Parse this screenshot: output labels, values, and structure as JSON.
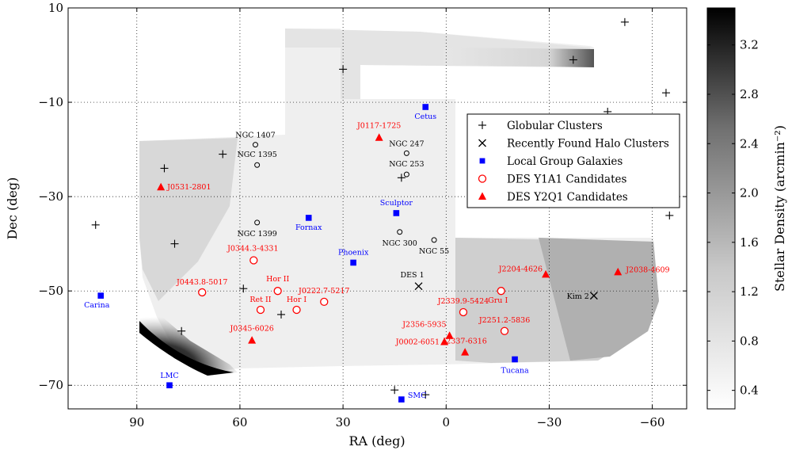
{
  "chart_data": {
    "type": "scatter",
    "title": "",
    "xlabel": "RA (deg)",
    "ylabel": "Dec (deg)",
    "xlim": [
      110,
      -70
    ],
    "ylim": [
      -75,
      10
    ],
    "x_ticks": [
      90,
      60,
      30,
      0,
      -30,
      -60
    ],
    "x_tick_labels": [
      "90",
      "60",
      "30",
      "0",
      "−30",
      "−60"
    ],
    "y_ticks": [
      10,
      -10,
      -30,
      -50,
      -70
    ],
    "y_tick_labels": [
      "10",
      "−10",
      "−30",
      "−50",
      "−70"
    ],
    "grid": true,
    "legend_position": "upper-right",
    "background": "stellar density map, greyscale",
    "colorbar": {
      "label": "Stellar Density (arcmin⁻²)",
      "range": [
        0.25,
        3.5
      ],
      "ticks": [
        0.4,
        0.8,
        1.2,
        1.6,
        2.0,
        2.4,
        2.8,
        3.2
      ],
      "tick_labels": [
        "0.4",
        "0.8",
        "1.2",
        "1.6",
        "2.0",
        "2.4",
        "2.8",
        "3.2"
      ],
      "colormap": "Greys"
    },
    "series": [
      {
        "name": "Globular Clusters",
        "marker": "plus",
        "color": "#000000",
        "points": [
          {
            "x": -52,
            "y": 7
          },
          {
            "x": -37,
            "y": -1
          },
          {
            "x": -47,
            "y": -12
          },
          {
            "x": -64,
            "y": -8
          },
          {
            "x": 30,
            "y": -3
          },
          {
            "x": 65,
            "y": -21
          },
          {
            "x": 82,
            "y": -24
          },
          {
            "x": 102,
            "y": -36
          },
          {
            "x": 79,
            "y": -40
          },
          {
            "x": 13,
            "y": -26
          },
          {
            "x": -65,
            "y": -34
          },
          {
            "x": 59,
            "y": -49.5
          },
          {
            "x": 48,
            "y": -55
          },
          {
            "x": 77,
            "y": -58.5
          },
          {
            "x": 15,
            "y": -71
          },
          {
            "x": 6,
            "y": -72
          }
        ]
      },
      {
        "name": "Recently Found Halo Clusters",
        "marker": "x",
        "color": "#000000",
        "points": [
          {
            "x": 8,
            "y": -49,
            "label": "DES 1"
          },
          {
            "x": -43,
            "y": -51,
            "label": "Kim 2"
          }
        ]
      },
      {
        "name": "Local Group Galaxies",
        "marker": "square",
        "color": "#0000ff",
        "points": [
          {
            "x": 6,
            "y": -11,
            "label": "Cetus"
          },
          {
            "x": 14.5,
            "y": -33.5,
            "label": "Sculptor"
          },
          {
            "x": 40,
            "y": -34.5,
            "label": "Fornax"
          },
          {
            "x": 27,
            "y": -44,
            "label": "Phoenix"
          },
          {
            "x": 100.5,
            "y": -51,
            "label": "Carina"
          },
          {
            "x": 80.5,
            "y": -70,
            "label": "LMC"
          },
          {
            "x": 13,
            "y": -73,
            "label": "SMC"
          },
          {
            "x": -20,
            "y": -64.5,
            "label": "Tucana"
          }
        ]
      },
      {
        "name": "DES Y1A1 Candidates",
        "marker": "circle",
        "color": "#ff0000",
        "points": [
          {
            "x": 56,
            "y": -43.5,
            "label": "J0344.3-4331"
          },
          {
            "x": 71,
            "y": -50.3,
            "label": "J0443.8-5017"
          },
          {
            "x": 49,
            "y": -50,
            "label": "Hor II"
          },
          {
            "x": 54,
            "y": -54,
            "label": "Ret II"
          },
          {
            "x": 43.5,
            "y": -54,
            "label": "Hor I"
          },
          {
            "x": 35.5,
            "y": -52.3,
            "label": "J0222.7-5217"
          },
          {
            "x": -5,
            "y": -54.5,
            "label": "J2339.9-5424"
          },
          {
            "x": -16,
            "y": -50,
            "label": "Gru I"
          },
          {
            "x": -17,
            "y": -58.5,
            "label": "J2251.2-5836"
          }
        ]
      },
      {
        "name": "DES Y2Q1 Candidates",
        "marker": "triangle",
        "color": "#ff0000",
        "points": [
          {
            "x": 19.5,
            "y": -17.5,
            "label": "J0117-1725"
          },
          {
            "x": 83,
            "y": -28,
            "label": "J0531-2801"
          },
          {
            "x": 56.5,
            "y": -60.5,
            "label": "J0345-6026"
          },
          {
            "x": 0.5,
            "y": -60.8,
            "label": "J0002-6051"
          },
          {
            "x": -1,
            "y": -59.5,
            "label": "J2356-5935"
          },
          {
            "x": -5.5,
            "y": -63,
            "label": "J2337-6316"
          },
          {
            "x": -29,
            "y": -46.5,
            "label": "J2204-4626"
          },
          {
            "x": -50,
            "y": -46,
            "label": "J2038-4609"
          }
        ]
      },
      {
        "name": "",
        "marker": "small-circle",
        "color": "#000000",
        "points": [
          {
            "x": 55.5,
            "y": -19,
            "label": "NGC 1407"
          },
          {
            "x": 55,
            "y": -23.3,
            "label": "NGC 1395"
          },
          {
            "x": 55,
            "y": -35.5,
            "label": "NGC 1399"
          },
          {
            "x": 11.5,
            "y": -20.8,
            "label": "NGC 247"
          },
          {
            "x": 11.5,
            "y": -25.3,
            "label": "NGC 253"
          },
          {
            "x": 13.5,
            "y": -37.5,
            "label": "NGC 300"
          },
          {
            "x": 3.5,
            "y": -39.2,
            "label": "NGC 55"
          }
        ]
      }
    ]
  }
}
